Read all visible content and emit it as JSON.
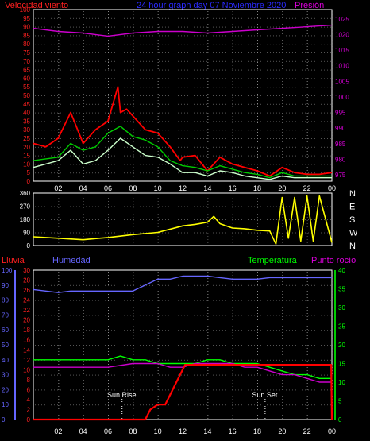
{
  "chart_data": [
    {
      "type": "line",
      "title": "24 hour graph day 07 Noviembre 2020",
      "left_label": "Velocidad viento",
      "right_label": "Presión",
      "x_ticks": [
        "02",
        "04",
        "06",
        "08",
        "10",
        "12",
        "14",
        "16",
        "18",
        "20",
        "22",
        "00"
      ],
      "x_range": [
        0,
        24
      ],
      "y_left_ticks": [
        0,
        5,
        10,
        15,
        20,
        25,
        30,
        35,
        40,
        45,
        50,
        55,
        60,
        65,
        70,
        75,
        80,
        85,
        90,
        95,
        100
      ],
      "y_left_range": [
        0,
        100
      ],
      "y_right_ticks": [
        975,
        980,
        985,
        990,
        995,
        1000,
        1005,
        1010,
        1015,
        1020,
        1025
      ],
      "y_right_range": [
        973,
        1028
      ],
      "series": [
        {
          "color": "#ff0000",
          "x": [
            0,
            1,
            2,
            3,
            4,
            5,
            6,
            6.8,
            7,
            7.5,
            8,
            9,
            10,
            11,
            11.8,
            12,
            13,
            14,
            15,
            16,
            17,
            18,
            19,
            20,
            21,
            22,
            23,
            24
          ],
          "y": [
            22,
            20,
            25,
            40,
            22,
            30,
            35,
            55,
            40,
            42,
            38,
            30,
            28,
            20,
            12,
            14,
            15,
            6,
            14,
            10,
            8,
            6,
            3,
            8,
            5,
            4,
            4,
            5
          ]
        },
        {
          "color": "#00cc00",
          "x": [
            0,
            2,
            3,
            4,
            5,
            6,
            7,
            8,
            9,
            10,
            11,
            12,
            13,
            14,
            15,
            16,
            17,
            18,
            19,
            20,
            21,
            22,
            23,
            24
          ],
          "y": [
            12,
            14,
            22,
            18,
            20,
            28,
            32,
            26,
            24,
            20,
            12,
            9,
            8,
            6,
            9,
            7,
            5,
            4,
            2,
            5,
            3,
            3,
            3,
            3
          ]
        },
        {
          "color": "#ccffcc",
          "x": [
            0,
            1,
            2,
            3,
            4,
            5,
            6,
            7,
            8,
            9,
            10,
            11,
            12,
            13,
            14,
            15,
            16,
            17,
            18,
            19,
            20,
            21,
            22,
            23,
            24
          ],
          "y": [
            8,
            10,
            12,
            18,
            10,
            12,
            18,
            25,
            20,
            15,
            14,
            10,
            5,
            5,
            3,
            6,
            5,
            3,
            2,
            1,
            3,
            2,
            2,
            2,
            2
          ]
        },
        {
          "color": "#cc00cc",
          "x": [
            0,
            2,
            4,
            6,
            8,
            10,
            12,
            14,
            16,
            18,
            20,
            22,
            24
          ],
          "y": [
            1022,
            1021,
            1020.5,
            1019.5,
            1020.5,
            1021,
            1021,
            1020.5,
            1021,
            1021.5,
            1022,
            1022.5,
            1023
          ]
        }
      ]
    },
    {
      "type": "line",
      "y_ticks": [
        0,
        90,
        180,
        270,
        360
      ],
      "y_range": [
        0,
        360
      ],
      "x_range": [
        0,
        24
      ],
      "right_labels": [
        "N",
        "W",
        "S",
        "E",
        "N"
      ],
      "series": [
        {
          "color": "#ffff00",
          "x": [
            0,
            2,
            4,
            6,
            8,
            10,
            12,
            13,
            14,
            14.5,
            15,
            16,
            17,
            18,
            19,
            19.5,
            20,
            20.5,
            21,
            21.5,
            22,
            22.5,
            23,
            24
          ],
          "y": [
            60,
            50,
            40,
            55,
            75,
            90,
            135,
            145,
            160,
            200,
            150,
            120,
            115,
            105,
            100,
            10,
            330,
            50,
            330,
            30,
            340,
            30,
            340,
            20
          ]
        }
      ]
    },
    {
      "type": "line",
      "labels": {
        "rain": "Lluvia",
        "humidity": "Humedad",
        "temperature": "Temperatura",
        "dewpoint": "Punto rocío"
      },
      "x_ticks": [
        "02",
        "04",
        "06",
        "08",
        "10",
        "12",
        "14",
        "16",
        "18",
        "20",
        "22",
        "00"
      ],
      "x_range": [
        0,
        24
      ],
      "rain_ticks": [
        0,
        2,
        4,
        6,
        8,
        10,
        12,
        14,
        16,
        18,
        20,
        22,
        24,
        26,
        28,
        30
      ],
      "rain_range": [
        0,
        30
      ],
      "humidity_ticks": [
        0,
        10,
        20,
        30,
        40,
        50,
        60,
        70,
        80,
        90,
        100
      ],
      "humidity_range": [
        0,
        100
      ],
      "temp_ticks": [
        0,
        5,
        10,
        15,
        20,
        25,
        30,
        35,
        40
      ],
      "temp_range": [
        0,
        40
      ],
      "annotations": [
        {
          "label": "Sun Rise",
          "x": 7.1
        },
        {
          "label": "Sun Set",
          "x": 18.6
        }
      ],
      "series": [
        {
          "name_key": "humidity",
          "color": "#6666ff",
          "axis": "humidity",
          "x": [
            0,
            1,
            2,
            3,
            4,
            5,
            6,
            7,
            8,
            9,
            10,
            11,
            12,
            13,
            14,
            15,
            16,
            17,
            18,
            19,
            20,
            21,
            22,
            23,
            24
          ],
          "y": [
            87,
            86,
            85,
            86,
            86,
            86,
            86,
            86,
            86,
            90,
            94,
            94,
            96,
            96,
            96,
            95,
            94,
            94,
            94,
            95,
            95,
            95,
            95,
            95,
            95
          ]
        },
        {
          "name_key": "temperature",
          "color": "#00ff00",
          "axis": "temp",
          "x": [
            0,
            2,
            4,
            6,
            7,
            8,
            9,
            10,
            11,
            12,
            13,
            14,
            15,
            16,
            17,
            18,
            19,
            20,
            21,
            22,
            23,
            24
          ],
          "y": [
            16,
            16,
            16,
            16,
            17,
            16,
            16,
            15,
            15,
            15,
            15,
            16,
            16,
            15,
            15,
            15,
            14,
            13,
            12,
            12,
            11,
            11
          ]
        },
        {
          "name_key": "dewpoint",
          "color": "#cc00cc",
          "axis": "temp",
          "x": [
            0,
            2,
            4,
            6,
            8,
            9,
            10,
            11,
            12,
            13,
            14,
            15,
            16,
            17,
            18,
            19,
            20,
            21,
            22,
            23,
            24
          ],
          "y": [
            14,
            14,
            14,
            14,
            15,
            15,
            15,
            14,
            14,
            15,
            15,
            15,
            15,
            14,
            14,
            13,
            12,
            12,
            11,
            10,
            10
          ]
        },
        {
          "name_key": "rain",
          "color": "#ff0000",
          "axis": "rain",
          "x": [
            0,
            6,
            8,
            9,
            9.4,
            10,
            10.6,
            11,
            11.4,
            11.8,
            12.2,
            13,
            14,
            16,
            18,
            20,
            22,
            23.95,
            24
          ],
          "y": [
            0,
            0,
            0,
            0,
            2,
            3,
            3,
            5,
            7,
            9,
            11,
            11,
            11,
            11,
            11,
            11,
            11,
            11,
            0
          ]
        }
      ]
    }
  ]
}
